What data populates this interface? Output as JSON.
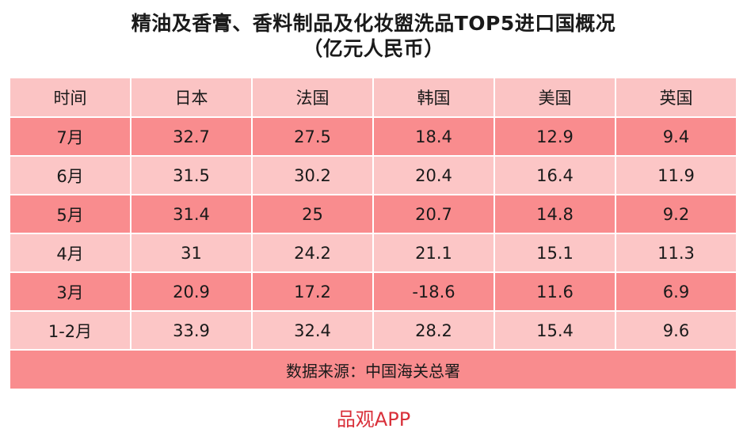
{
  "title": {
    "line1": "精油及香膏、香料制品及化妆盥洗品TOP5进口国概况",
    "line2": "（亿元人民币）"
  },
  "table": {
    "headers": [
      "时间",
      "日本",
      "法国",
      "韩国",
      "美国",
      "英国"
    ],
    "rows": [
      [
        "7月",
        "32.7",
        "27.5",
        "18.4",
        "12.9",
        "9.4"
      ],
      [
        "6月",
        "31.5",
        "30.2",
        "20.4",
        "16.4",
        "11.9"
      ],
      [
        "5月",
        "31.4",
        "25",
        "20.7",
        "14.8",
        "9.2"
      ],
      [
        "4月",
        "31",
        "24.2",
        "21.1",
        "15.1",
        "11.3"
      ],
      [
        "3月",
        "20.9",
        "17.2",
        "-18.6",
        "11.6",
        "6.9"
      ],
      [
        "1-2月",
        "33.9",
        "32.4",
        "28.2",
        "15.4",
        "9.6"
      ]
    ],
    "source": "数据来源：中国海关总署"
  },
  "brand": "品观APP",
  "colors": {
    "header_bg": "#fbc4c4",
    "dark_row_bg": "#f98c8e",
    "light_row_bg": "#fcc6c6",
    "brand_text": "#d9303a"
  }
}
